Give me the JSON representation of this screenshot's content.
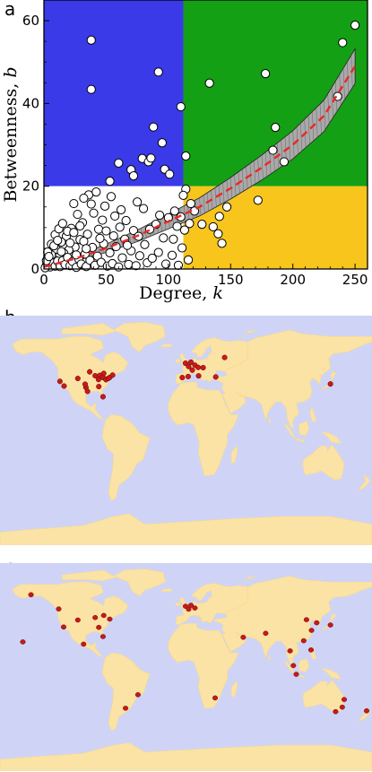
{
  "panels": {
    "a": "a",
    "b": "b",
    "c": "c"
  },
  "chart_data": [
    {
      "panel": "a",
      "type": "scatter",
      "xlabel": "Degree, ",
      "xlabel_var": "k",
      "ylabel": "Betweenness, ",
      "ylabel_var": "b",
      "xlim": [
        0,
        260
      ],
      "ylim": [
        0,
        65
      ],
      "xticks": [
        "0",
        "50",
        "100",
        "150",
        "200",
        "250"
      ],
      "yticks": [
        "0",
        "20",
        "40",
        "60"
      ],
      "regions": [
        {
          "name": "low-degree high-betweenness",
          "k": [
            0,
            112
          ],
          "b": [
            20,
            65
          ],
          "color": "#3a3ae8"
        },
        {
          "name": "high-degree high-betweenness",
          "k": [
            112,
            260
          ],
          "b": [
            20,
            65
          ],
          "color": "#14a014"
        },
        {
          "name": "high-degree low-betweenness",
          "k": [
            112,
            260
          ],
          "b": [
            0,
            20
          ],
          "color": "#f7c51c"
        },
        {
          "name": "low-degree low-betweenness",
          "k": [
            0,
            112
          ],
          "b": [
            0,
            20
          ],
          "color": "#ffffff"
        }
      ],
      "fit": {
        "style": "red dashed",
        "color": "#e8282a",
        "x": [
          0,
          25,
          50,
          75,
          100,
          125,
          150,
          175,
          200,
          225,
          250
        ],
        "y": [
          0.5,
          2.5,
          5,
          8,
          11.5,
          15,
          19.5,
          24.5,
          30,
          37,
          49
        ],
        "band_halfwidth": [
          0.3,
          0.6,
          1,
          1.4,
          1.8,
          2.2,
          2.6,
          3,
          3.4,
          3.8,
          4.2
        ]
      },
      "points": [
        {
          "k": 38,
          "b": 55.3
        },
        {
          "k": 38,
          "b": 43.4
        },
        {
          "k": 92,
          "b": 47.6
        },
        {
          "k": 110,
          "b": 39.2
        },
        {
          "k": 133,
          "b": 44.9
        },
        {
          "k": 178,
          "b": 47.2
        },
        {
          "k": 240,
          "b": 54.7
        },
        {
          "k": 250,
          "b": 58.9
        },
        {
          "k": 236,
          "b": 41.7
        },
        {
          "k": 186,
          "b": 34.2
        },
        {
          "k": 184,
          "b": 28.7
        },
        {
          "k": 193,
          "b": 25.9
        },
        {
          "k": 88,
          "b": 34.3
        },
        {
          "k": 95,
          "b": 30.5
        },
        {
          "k": 60,
          "b": 25.6
        },
        {
          "k": 70,
          "b": 24.0
        },
        {
          "k": 72,
          "b": 22.5
        },
        {
          "k": 79,
          "b": 26.7
        },
        {
          "k": 84,
          "b": 25.9
        },
        {
          "k": 86,
          "b": 26.8
        },
        {
          "k": 97,
          "b": 24.1
        },
        {
          "k": 101,
          "b": 22.9
        },
        {
          "k": 114,
          "b": 27.3
        },
        {
          "k": 53,
          "b": 21.2
        },
        {
          "k": 172,
          "b": 16.6
        },
        {
          "k": 147,
          "b": 15.0
        },
        {
          "k": 141,
          "b": 12.7
        },
        {
          "k": 136,
          "b": 10.2
        },
        {
          "k": 140,
          "b": 8.5
        },
        {
          "k": 143,
          "b": 6.2
        },
        {
          "k": 127,
          "b": 10.8
        },
        {
          "k": 121,
          "b": 14.0
        },
        {
          "k": 118,
          "b": 15.8
        },
        {
          "k": 114,
          "b": 19.3
        },
        {
          "k": 112,
          "b": 17.8
        },
        {
          "k": 117,
          "b": 11.0
        },
        {
          "k": 113,
          "b": 9.4
        },
        {
          "k": 110,
          "b": 12.6
        },
        {
          "k": 107,
          "b": 10.3
        },
        {
          "k": 105,
          "b": 14.0
        },
        {
          "k": 100,
          "b": 12.4
        },
        {
          "k": 96,
          "b": 7.5
        },
        {
          "k": 90,
          "b": 10.8
        },
        {
          "k": 80,
          "b": 14.6
        },
        {
          "k": 75,
          "b": 16.2
        },
        {
          "k": 72,
          "b": 9.3
        },
        {
          "k": 66,
          "b": 11.7
        },
        {
          "k": 62,
          "b": 14.3
        },
        {
          "k": 57,
          "b": 12.8
        },
        {
          "k": 54,
          "b": 17.5
        },
        {
          "k": 49,
          "b": 15.2
        },
        {
          "k": 47,
          "b": 11.8
        },
        {
          "k": 44,
          "b": 9.6
        },
        {
          "k": 40,
          "b": 13.5
        },
        {
          "k": 38,
          "b": 15.7
        },
        {
          "k": 36,
          "b": 17.9
        },
        {
          "k": 35,
          "b": 8.4
        },
        {
          "k": 31,
          "b": 11.2
        },
        {
          "k": 29,
          "b": 7.1
        },
        {
          "k": 27,
          "b": 13.2
        },
        {
          "k": 25,
          "b": 5.3
        },
        {
          "k": 22,
          "b": 9.8
        },
        {
          "k": 20,
          "b": 4.6
        },
        {
          "k": 18,
          "b": 7.9
        },
        {
          "k": 16,
          "b": 3.8
        },
        {
          "k": 14,
          "b": 6.5
        },
        {
          "k": 12,
          "b": 2.9
        },
        {
          "k": 10,
          "b": 4.8
        },
        {
          "k": 8,
          "b": 2.3
        },
        {
          "k": 6,
          "b": 3.4
        },
        {
          "k": 4,
          "b": 1.3
        },
        {
          "k": 2,
          "b": 0.9
        },
        {
          "k": 3,
          "b": 2.6
        },
        {
          "k": 5,
          "b": 0.5
        },
        {
          "k": 7,
          "b": 1.5
        },
        {
          "k": 9,
          "b": 0.7
        },
        {
          "k": 11,
          "b": 1.9
        },
        {
          "k": 13,
          "b": 0.6
        },
        {
          "k": 15,
          "b": 2.0
        },
        {
          "k": 17,
          "b": 1.1
        },
        {
          "k": 19,
          "b": 2.8
        },
        {
          "k": 21,
          "b": 0.8
        },
        {
          "k": 23,
          "b": 1.8
        },
        {
          "k": 26,
          "b": 0.4
        },
        {
          "k": 28,
          "b": 2.4
        },
        {
          "k": 30,
          "b": 1.2
        },
        {
          "k": 33,
          "b": 3.6
        },
        {
          "k": 34,
          "b": 0.6
        },
        {
          "k": 37,
          "b": 2.1
        },
        {
          "k": 39,
          "b": 5.2
        },
        {
          "k": 41,
          "b": 0.9
        },
        {
          "k": 43,
          "b": 3.1
        },
        {
          "k": 46,
          "b": 1.6
        },
        {
          "k": 48,
          "b": 6.1
        },
        {
          "k": 51,
          "b": 0.7
        },
        {
          "k": 53,
          "b": 3.9
        },
        {
          "k": 55,
          "b": 1.3
        },
        {
          "k": 58,
          "b": 5.4
        },
        {
          "k": 60,
          "b": 0.5
        },
        {
          "k": 63,
          "b": 2.7
        },
        {
          "k": 65,
          "b": 7.2
        },
        {
          "k": 68,
          "b": 1.1
        },
        {
          "k": 70,
          "b": 4.4
        },
        {
          "k": 74,
          "b": 0.8
        },
        {
          "k": 77,
          "b": 3.2
        },
        {
          "k": 81,
          "b": 5.9
        },
        {
          "k": 83,
          "b": 1.5
        },
        {
          "k": 87,
          "b": 2.6
        },
        {
          "k": 92,
          "b": 4.0
        },
        {
          "k": 98,
          "b": 1.2
        },
        {
          "k": 103,
          "b": 3.3
        },
        {
          "k": 108,
          "b": 0.9
        },
        {
          "k": 111,
          "b": 5.1
        },
        {
          "k": 116,
          "b": 2.2
        },
        {
          "k": 3,
          "b": 4.1
        },
        {
          "k": 6,
          "b": 6.0
        },
        {
          "k": 9,
          "b": 8.3
        },
        {
          "k": 12,
          "b": 9.7
        },
        {
          "k": 15,
          "b": 11.0
        },
        {
          "k": 24,
          "b": 15.8
        },
        {
          "k": 32,
          "b": 17.1
        },
        {
          "k": 42,
          "b": 18.6
        },
        {
          "k": 1,
          "b": 0.3
        },
        {
          "k": 2,
          "b": 2.0
        },
        {
          "k": 4,
          "b": 3.0
        },
        {
          "k": 8,
          "b": 5.6
        },
        {
          "k": 11,
          "b": 6.9
        },
        {
          "k": 14,
          "b": 4.2
        },
        {
          "k": 19,
          "b": 9.1
        },
        {
          "k": 21,
          "b": 6.3
        },
        {
          "k": 24,
          "b": 8.8
        },
        {
          "k": 26,
          "b": 3.4
        },
        {
          "k": 29,
          "b": 10.4
        },
        {
          "k": 32,
          "b": 6.7
        },
        {
          "k": 34,
          "b": 4.9
        },
        {
          "k": 45,
          "b": 7.4
        },
        {
          "k": 50,
          "b": 9.2
        },
        {
          "k": 56,
          "b": 8.0
        },
        {
          "k": 61,
          "b": 10.1
        },
        {
          "k": 67,
          "b": 5.7
        },
        {
          "k": 76,
          "b": 7.9
        },
        {
          "k": 85,
          "b": 9.6
        },
        {
          "k": 93,
          "b": 13.0
        },
        {
          "k": 104,
          "b": 7.2
        }
      ]
    },
    {
      "panel": "b",
      "type": "scatter",
      "map": "world",
      "marker_color": "#cc1818",
      "points_lonlat": [
        [
          -122,
          37.6
        ],
        [
          -118,
          34
        ],
        [
          -96.8,
          32.9
        ],
        [
          -95.3,
          29.9
        ],
        [
          -97.6,
          35.4
        ],
        [
          -104.7,
          39.8
        ],
        [
          -93.2,
          44.9
        ],
        [
          -87.9,
          41.9
        ],
        [
          -84.4,
          33.6
        ],
        [
          -83.3,
          42.2
        ],
        [
          -80.2,
          40.5
        ],
        [
          -84.7,
          39.0
        ],
        [
          -77.4,
          38.9
        ],
        [
          -75.2,
          39.9
        ],
        [
          -73.8,
          40.6
        ],
        [
          -71,
          42.4
        ],
        [
          -80.3,
          25.8
        ],
        [
          -79.6,
          43.7
        ],
        [
          -0.46,
          51.5
        ],
        [
          2.55,
          49
        ],
        [
          8.6,
          50
        ],
        [
          4.8,
          52.3
        ],
        [
          11.8,
          48.3
        ],
        [
          12.2,
          41.8
        ],
        [
          -3.6,
          40.5
        ],
        [
          2.1,
          41.3
        ],
        [
          16.6,
          48.1
        ],
        [
          28.8,
          41
        ],
        [
          37.4,
          55.9
        ],
        [
          139.8,
          35.6
        ],
        [
          6.1,
          46.2
        ]
      ]
    },
    {
      "panel": "c",
      "type": "scatter",
      "map": "world",
      "marker_color": "#cc1818",
      "points_lonlat": [
        [
          -150,
          61.2
        ],
        [
          -157.9,
          21.3
        ],
        [
          -123.2,
          49.2
        ],
        [
          -118.4,
          33.9
        ],
        [
          -104.7,
          39.8
        ],
        [
          -79.6,
          43.7
        ],
        [
          -87.9,
          41.9
        ],
        [
          -73.8,
          40.6
        ],
        [
          -84.4,
          33.6
        ],
        [
          -99.1,
          19.4
        ],
        [
          -80.3,
          25.8
        ],
        [
          -46.5,
          -23.4
        ],
        [
          -58.5,
          -34.8
        ],
        [
          28.2,
          -26.1
        ],
        [
          -0.46,
          51.5
        ],
        [
          2.55,
          49
        ],
        [
          8.6,
          50
        ],
        [
          4.8,
          52.3
        ],
        [
          55.4,
          25.2
        ],
        [
          113.9,
          22.3
        ],
        [
          121.5,
          31.1
        ],
        [
          116.6,
          40.1
        ],
        [
          126.5,
          37.5
        ],
        [
          139.8,
          35.6
        ],
        [
          103.9,
          1.3
        ],
        [
          100.7,
          13.7
        ],
        [
          121,
          14.5
        ],
        [
          106.7,
          -6.1
        ],
        [
          153.1,
          -27.4
        ],
        [
          151.2,
          -33.9
        ],
        [
          144.8,
          -37.7
        ],
        [
          174.8,
          -37
        ],
        [
          77.1,
          28.6
        ]
      ]
    }
  ]
}
